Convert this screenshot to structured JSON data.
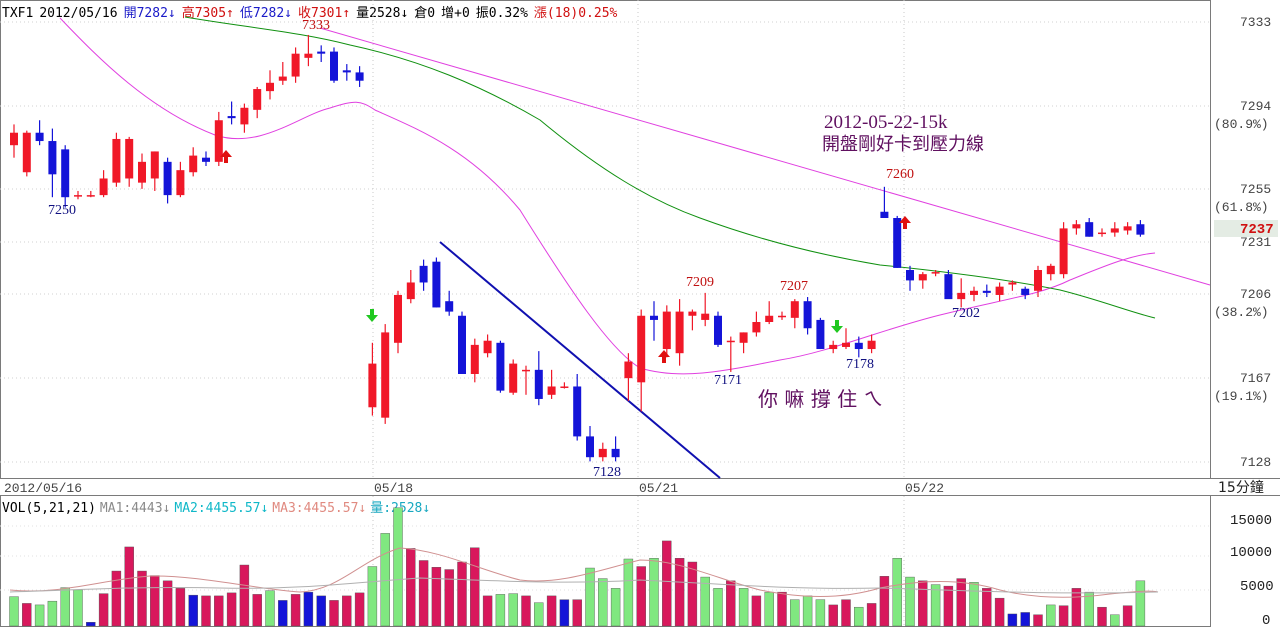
{
  "header": {
    "symbol": "TXF1",
    "date": "2012/05/16",
    "open": "開7282↓",
    "high": "高7305↑",
    "low": "低7282↓",
    "close": "收7301↑",
    "volume": "量2528↓",
    "oi": "倉0",
    "change": "增+0",
    "amplitude": "振0.32%",
    "rise": "漲(18)0.25%"
  },
  "vol_header": {
    "name": "VOL(5,21,21)",
    "ma1": "MA1:4443↓",
    "ma2": "MA2:4455.57↓",
    "ma3": "MA3:4455.57↓",
    "qty": "量:2528↓"
  },
  "price_axis": {
    "ticks": [
      "7333",
      "7294",
      "7255",
      "7231",
      "7206",
      "7167",
      "7128"
    ],
    "fib": [
      "(80.9%)",
      "(61.8%)",
      "(38.2%)",
      "(19.1%)"
    ],
    "current": "7237",
    "period": "15分鐘"
  },
  "vol_axis": {
    "ticks": [
      "15000",
      "10000",
      "5000",
      "0"
    ]
  },
  "x_axis": {
    "labels": [
      "2012/05/16",
      "05/18",
      "05/21",
      "05/22"
    ]
  },
  "annotations": {
    "title_date": "2012-05-22-15k",
    "title_text": "開盤剛好卡到壓力線",
    "comment": "你 嘛 撐 住 ㄟ",
    "points": [
      "7250",
      "7333",
      "7128",
      "7209",
      "7207",
      "7171",
      "7178",
      "7260",
      "7202"
    ]
  },
  "colors": {
    "up": "#f01828",
    "down": "#1414d8",
    "ma_magenta": "#e040e0",
    "ma_green": "#109010",
    "trend_blue": "#1010b0",
    "vol_up": "#d8185c",
    "vol_down": "#1414d8",
    "vol_green": "#80e880"
  },
  "chart_data": {
    "type": "candlestick",
    "unit_y": "price",
    "ylim": [
      7120,
      7345
    ],
    "candles": [
      {
        "o": 7280,
        "h": 7290,
        "l": 7274,
        "c": 7286
      },
      {
        "o": 7267,
        "h": 7287,
        "l": 7265,
        "c": 7286
      },
      {
        "o": 7286,
        "h": 7292,
        "l": 7280,
        "c": 7282
      },
      {
        "o": 7282,
        "h": 7288,
        "l": 7255,
        "c": 7266
      },
      {
        "o": 7278,
        "h": 7280,
        "l": 7250,
        "c": 7255
      },
      {
        "o": 7256,
        "h": 7258,
        "l": 7254,
        "c": 7256
      },
      {
        "o": 7256,
        "h": 7258,
        "l": 7255,
        "c": 7256
      },
      {
        "o": 7256,
        "h": 7268,
        "l": 7255,
        "c": 7264
      },
      {
        "o": 7262,
        "h": 7286,
        "l": 7260,
        "c": 7283
      },
      {
        "o": 7264,
        "h": 7284,
        "l": 7260,
        "c": 7283
      },
      {
        "o": 7262,
        "h": 7276,
        "l": 7259,
        "c": 7272
      },
      {
        "o": 7264,
        "h": 7277,
        "l": 7258,
        "c": 7277
      },
      {
        "o": 7272,
        "h": 7274,
        "l": 7252,
        "c": 7256
      },
      {
        "o": 7256,
        "h": 7272,
        "l": 7255,
        "c": 7268
      },
      {
        "o": 7267,
        "h": 7279,
        "l": 7265,
        "c": 7275
      },
      {
        "o": 7274,
        "h": 7277,
        "l": 7270,
        "c": 7272
      },
      {
        "o": 7272,
        "h": 7296,
        "l": 7270,
        "c": 7292
      },
      {
        "o": 7294,
        "h": 7301,
        "l": 7290,
        "c": 7293
      },
      {
        "o": 7290,
        "h": 7300,
        "l": 7286,
        "c": 7298
      },
      {
        "o": 7297,
        "h": 7308,
        "l": 7293,
        "c": 7307
      },
      {
        "o": 7306,
        "h": 7316,
        "l": 7302,
        "c": 7310
      },
      {
        "o": 7311,
        "h": 7320,
        "l": 7309,
        "c": 7313
      },
      {
        "o": 7313,
        "h": 7327,
        "l": 7310,
        "c": 7324
      },
      {
        "o": 7322,
        "h": 7333,
        "l": 7318,
        "c": 7324
      },
      {
        "o": 7325,
        "h": 7328,
        "l": 7320,
        "c": 7324
      },
      {
        "o": 7325,
        "h": 7327,
        "l": 7310,
        "c": 7311
      },
      {
        "o": 7316,
        "h": 7319,
        "l": 7311,
        "c": 7315
      },
      {
        "o": 7315,
        "h": 7318,
        "l": 7308,
        "c": 7311
      },
      {
        "o": 7154,
        "h": 7185,
        "l": 7150,
        "c": 7175
      },
      {
        "o": 7149,
        "h": 7194,
        "l": 7146,
        "c": 7190
      },
      {
        "o": 7185,
        "h": 7210,
        "l": 7180,
        "c": 7208
      },
      {
        "o": 7206,
        "h": 7220,
        "l": 7204,
        "c": 7214
      },
      {
        "o": 7222,
        "h": 7225,
        "l": 7210,
        "c": 7214
      },
      {
        "o": 7224,
        "h": 7226,
        "l": 7202,
        "c": 7202
      },
      {
        "o": 7205,
        "h": 7210,
        "l": 7198,
        "c": 7200
      },
      {
        "o": 7198,
        "h": 7200,
        "l": 7170,
        "c": 7170
      },
      {
        "o": 7170,
        "h": 7187,
        "l": 7166,
        "c": 7184
      },
      {
        "o": 7180,
        "h": 7189,
        "l": 7178,
        "c": 7186
      },
      {
        "o": 7185,
        "h": 7186,
        "l": 7161,
        "c": 7162
      },
      {
        "o": 7161,
        "h": 7177,
        "l": 7160,
        "c": 7175
      },
      {
        "o": 7172,
        "h": 7174,
        "l": 7160,
        "c": 7172
      },
      {
        "o": 7172,
        "h": 7181,
        "l": 7155,
        "c": 7158
      },
      {
        "o": 7160,
        "h": 7172,
        "l": 7158,
        "c": 7164
      },
      {
        "o": 7164,
        "h": 7166,
        "l": 7163,
        "c": 7164
      },
      {
        "o": 7164,
        "h": 7170,
        "l": 7138,
        "c": 7140
      },
      {
        "o": 7140,
        "h": 7145,
        "l": 7128,
        "c": 7130
      },
      {
        "o": 7130,
        "h": 7137,
        "l": 7128,
        "c": 7134
      },
      {
        "o": 7134,
        "h": 7140,
        "l": 7128,
        "c": 7130
      },
      {
        "o": 7168,
        "h": 7180,
        "l": 7157,
        "c": 7176
      },
      {
        "o": 7166,
        "h": 7201,
        "l": 7152,
        "c": 7198
      },
      {
        "o": 7198,
        "h": 7205,
        "l": 7186,
        "c": 7196
      },
      {
        "o": 7182,
        "h": 7203,
        "l": 7178,
        "c": 7200
      },
      {
        "o": 7180,
        "h": 7206,
        "l": 7174,
        "c": 7200
      },
      {
        "o": 7198,
        "h": 7201,
        "l": 7191,
        "c": 7200
      },
      {
        "o": 7196,
        "h": 7209,
        "l": 7193,
        "c": 7199
      },
      {
        "o": 7198,
        "h": 7200,
        "l": 7183,
        "c": 7184
      },
      {
        "o": 7186,
        "h": 7188,
        "l": 7171,
        "c": 7186
      },
      {
        "o": 7185,
        "h": 7190,
        "l": 7180,
        "c": 7190
      },
      {
        "o": 7190,
        "h": 7200,
        "l": 7188,
        "c": 7195
      },
      {
        "o": 7195,
        "h": 7205,
        "l": 7194,
        "c": 7198
      },
      {
        "o": 7198,
        "h": 7200,
        "l": 7196,
        "c": 7198
      },
      {
        "o": 7197,
        "h": 7206,
        "l": 7192,
        "c": 7205
      },
      {
        "o": 7205,
        "h": 7207,
        "l": 7189,
        "c": 7192
      },
      {
        "o": 7196,
        "h": 7197,
        "l": 7182,
        "c": 7182
      },
      {
        "o": 7182,
        "h": 7186,
        "l": 7180,
        "c": 7184
      },
      {
        "o": 7183,
        "h": 7192,
        "l": 7182,
        "c": 7185
      },
      {
        "o": 7185,
        "h": 7188,
        "l": 7178,
        "c": 7182
      },
      {
        "o": 7182,
        "h": 7189,
        "l": 7180,
        "c": 7186
      },
      {
        "o": 7248,
        "h": 7260,
        "l": 7245,
        "c": 7245
      },
      {
        "o": 7245,
        "h": 7246,
        "l": 7221,
        "c": 7221
      },
      {
        "o": 7220,
        "h": 7222,
        "l": 7210,
        "c": 7215
      },
      {
        "o": 7215,
        "h": 7219,
        "l": 7211,
        "c": 7218
      },
      {
        "o": 7219,
        "h": 7220,
        "l": 7217,
        "c": 7219
      },
      {
        "o": 7218,
        "h": 7220,
        "l": 7208,
        "c": 7206
      },
      {
        "o": 7206,
        "h": 7216,
        "l": 7202,
        "c": 7209
      },
      {
        "o": 7208,
        "h": 7212,
        "l": 7205,
        "c": 7210
      },
      {
        "o": 7210,
        "h": 7213,
        "l": 7207,
        "c": 7209
      },
      {
        "o": 7208,
        "h": 7214,
        "l": 7205,
        "c": 7212
      },
      {
        "o": 7213,
        "h": 7215,
        "l": 7210,
        "c": 7214
      },
      {
        "o": 7211,
        "h": 7212,
        "l": 7206,
        "c": 7208
      },
      {
        "o": 7210,
        "h": 7222,
        "l": 7207,
        "c": 7220
      },
      {
        "o": 7218,
        "h": 7223,
        "l": 7215,
        "c": 7222
      },
      {
        "o": 7218,
        "h": 7243,
        "l": 7216,
        "c": 7240
      },
      {
        "o": 7240,
        "h": 7244,
        "l": 7237,
        "c": 7242
      },
      {
        "o": 7243,
        "h": 7245,
        "l": 7236,
        "c": 7236
      },
      {
        "o": 7238,
        "h": 7240,
        "l": 7236,
        "c": 7238
      },
      {
        "o": 7238,
        "h": 7243,
        "l": 7236,
        "c": 7240
      },
      {
        "o": 7239,
        "h": 7243,
        "l": 7237,
        "c": 7241
      },
      {
        "o": 7242,
        "h": 7244,
        "l": 7236,
        "c": 7237
      }
    ],
    "volume_ylim": [
      0,
      17000
    ],
    "volume": [
      3900,
      3000,
      2800,
      3300,
      5100,
      4800,
      500,
      4300,
      7300,
      10500,
      7300,
      6700,
      6000,
      5000,
      4100,
      4000,
      4000,
      4400,
      8100,
      4200,
      4700,
      3400,
      4200,
      4500,
      4000,
      3400,
      4000,
      4400,
      7900,
      12300,
      15700,
      10300,
      8700,
      7800,
      7500,
      8500,
      10400,
      4000,
      4200,
      4300,
      4000,
      3100,
      4000,
      3500,
      3500,
      7700,
      6300,
      5000,
      8900,
      7900,
      9000,
      11300,
      9000,
      8500,
      6500,
      5000,
      6000,
      5000,
      4000,
      4500,
      4500,
      3500,
      4000,
      3500,
      2800,
      3500,
      2500,
      3000,
      6600,
      9000,
      6500,
      6000,
      5500,
      5300,
      6300,
      5800,
      5000,
      3700,
      1600,
      1800,
      1500,
      2800,
      2700,
      5000,
      4500,
      2500,
      1500,
      2700,
      6000
    ],
    "volume_colors": [
      "g",
      "r",
      "g",
      "g",
      "g",
      "g",
      "b",
      "r",
      "r",
      "r",
      "r",
      "r",
      "r",
      "r",
      "b",
      "r",
      "r",
      "r",
      "r",
      "r",
      "g",
      "b",
      "r",
      "b",
      "b",
      "r",
      "r",
      "r",
      "g",
      "g",
      "g",
      "r",
      "r",
      "r",
      "r",
      "r",
      "r",
      "r",
      "g",
      "g",
      "r",
      "g",
      "r",
      "b",
      "r",
      "g",
      "g",
      "g",
      "g",
      "r",
      "g",
      "r",
      "r",
      "r",
      "g",
      "g",
      "r",
      "g",
      "r",
      "g",
      "r",
      "g",
      "g",
      "g",
      "r",
      "r",
      "g",
      "r",
      "r",
      "g",
      "g",
      "r",
      "g",
      "r",
      "r",
      "g",
      "r",
      "r",
      "b",
      "b",
      "r",
      "g",
      "r",
      "r",
      "g",
      "r",
      "g",
      "r",
      "g"
    ]
  }
}
